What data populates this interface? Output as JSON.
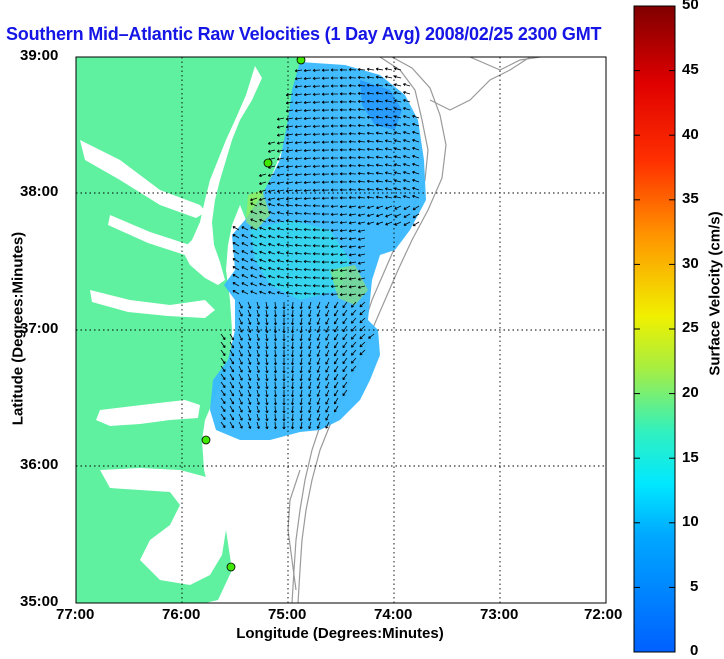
{
  "title": "Southern Mid–Atlantic Raw Velocities (1 Day Avg) 2008/02/25 2300 GMT",
  "map": {
    "xlabel": "Longitude (Degrees:Minutes)",
    "ylabel": "Latitude (Degrees:Minutes)",
    "lon_ticks": [
      "77:00",
      "76:00",
      "75:00",
      "74:00",
      "73:00",
      "72:00"
    ],
    "lat_ticks": [
      "39:00",
      "38:00",
      "37:00",
      "36:00",
      "35:00"
    ],
    "lon_range": [
      -77,
      -72
    ],
    "lat_range": [
      35,
      39
    ],
    "grid": true,
    "land_color": "#5ff0a0",
    "contour_color": "#9a9a9a"
  },
  "colorbar": {
    "label": "Surface Velocity (cm/s)",
    "ticks": [
      "50",
      "45",
      "40",
      "35",
      "30",
      "25",
      "20",
      "15",
      "10",
      "5",
      "0"
    ],
    "range": [
      0,
      50
    ],
    "colormap": "jet"
  }
}
